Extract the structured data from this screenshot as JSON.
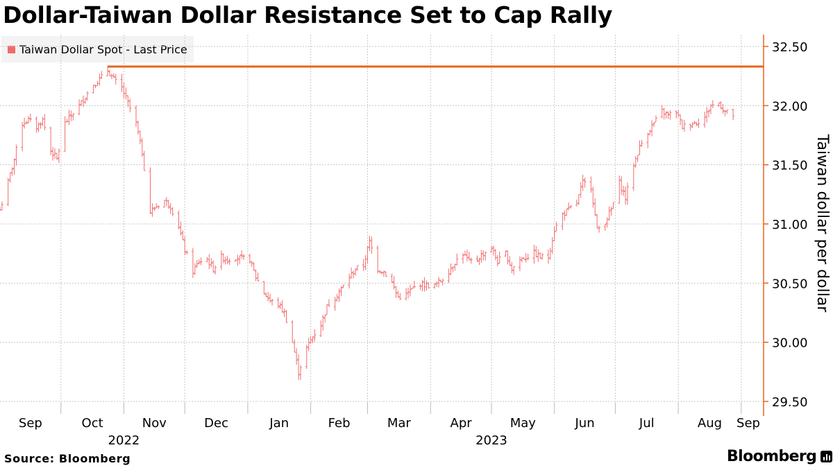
{
  "header": {
    "title": "Dollar-Taiwan Dollar Resistance Set to Cap Rally"
  },
  "legend": {
    "label": "Taiwan Dollar Spot - Last Price",
    "color": "#f26b6b"
  },
  "footer": {
    "source": "Source: Bloomberg",
    "brand": "Bloomberg"
  },
  "colors": {
    "series": "#f26b6b",
    "resistance": "#e8641b",
    "grid": "#c8c8c8",
    "axis": "#e8641b"
  },
  "chart_data": {
    "type": "line",
    "title": "Dollar-Taiwan Dollar Resistance Set to Cap Rally",
    "ylabel": "Taiwan dollar per dollar",
    "xlabel": "",
    "ylim": [
      29.5,
      32.5
    ],
    "yticks": [
      29.5,
      30.0,
      30.5,
      31.0,
      31.5,
      32.0,
      32.5
    ],
    "ytick_labels": [
      "29.50",
      "30.00",
      "30.50",
      "31.00",
      "31.50",
      "32.00",
      "32.50"
    ],
    "y_axis_position": "right",
    "grid": true,
    "legend_position": "top-left",
    "x_domain": [
      "2022-09-01",
      "2023-09-12"
    ],
    "month_ticks": [
      {
        "label": "Sep",
        "date": "2022-09-01"
      },
      {
        "label": "Oct",
        "date": "2022-10-01"
      },
      {
        "label": "Nov",
        "date": "2022-11-01"
      },
      {
        "label": "Dec",
        "date": "2022-12-01"
      },
      {
        "label": "Jan",
        "date": "2023-01-01"
      },
      {
        "label": "Feb",
        "date": "2023-02-01"
      },
      {
        "label": "Mar",
        "date": "2023-03-01"
      },
      {
        "label": "Apr",
        "date": "2023-04-01"
      },
      {
        "label": "May",
        "date": "2023-05-01"
      },
      {
        "label": "Jun",
        "date": "2023-06-01"
      },
      {
        "label": "Jul",
        "date": "2023-07-01"
      },
      {
        "label": "Aug",
        "date": "2023-08-01"
      },
      {
        "label": "Sep",
        "date": "2023-09-01"
      }
    ],
    "year_labels": [
      {
        "label": "2022",
        "date": "2022-11-01"
      },
      {
        "label": "2023",
        "date": "2023-05-01"
      }
    ],
    "resistance": {
      "value": 32.33,
      "from": "2022-10-24",
      "to": "2023-09-12"
    },
    "series": [
      {
        "name": "Taiwan Dollar Spot - Last Price",
        "points": [
          [
            "2022-09-01",
            31.12
          ],
          [
            "2022-09-05",
            31.35
          ],
          [
            "2022-09-08",
            31.55
          ],
          [
            "2022-09-12",
            31.85
          ],
          [
            "2022-09-15",
            31.88
          ],
          [
            "2022-09-19",
            31.82
          ],
          [
            "2022-09-22",
            31.88
          ],
          [
            "2022-09-26",
            31.62
          ],
          [
            "2022-09-29",
            31.55
          ],
          [
            "2022-10-03",
            31.85
          ],
          [
            "2022-10-06",
            31.92
          ],
          [
            "2022-10-10",
            32.0
          ],
          [
            "2022-10-13",
            32.08
          ],
          [
            "2022-10-17",
            32.18
          ],
          [
            "2022-10-20",
            32.22
          ],
          [
            "2022-10-24",
            32.3
          ],
          [
            "2022-10-27",
            32.22
          ],
          [
            "2022-10-31",
            32.15
          ],
          [
            "2022-11-03",
            32.02
          ],
          [
            "2022-11-07",
            31.85
          ],
          [
            "2022-11-10",
            31.6
          ],
          [
            "2022-11-14",
            31.1
          ],
          [
            "2022-11-17",
            31.15
          ],
          [
            "2022-11-21",
            31.2
          ],
          [
            "2022-11-24",
            31.15
          ],
          [
            "2022-11-28",
            30.98
          ],
          [
            "2022-12-01",
            30.78
          ],
          [
            "2022-12-05",
            30.6
          ],
          [
            "2022-12-08",
            30.68
          ],
          [
            "2022-12-12",
            30.7
          ],
          [
            "2022-12-15",
            30.62
          ],
          [
            "2022-12-19",
            30.72
          ],
          [
            "2022-12-22",
            30.7
          ],
          [
            "2022-12-26",
            30.72
          ],
          [
            "2022-12-29",
            30.71
          ],
          [
            "2023-01-02",
            30.7
          ],
          [
            "2023-01-05",
            30.55
          ],
          [
            "2023-01-09",
            30.42
          ],
          [
            "2023-01-12",
            30.35
          ],
          [
            "2023-01-16",
            30.32
          ],
          [
            "2023-01-19",
            30.25
          ],
          [
            "2023-01-23",
            30.0
          ],
          [
            "2023-01-26",
            29.75
          ],
          [
            "2023-01-30",
            29.95
          ],
          [
            "2023-02-02",
            30.05
          ],
          [
            "2023-02-06",
            30.15
          ],
          [
            "2023-02-09",
            30.3
          ],
          [
            "2023-02-13",
            30.38
          ],
          [
            "2023-02-16",
            30.45
          ],
          [
            "2023-02-20",
            30.55
          ],
          [
            "2023-02-23",
            30.62
          ],
          [
            "2023-02-27",
            30.65
          ],
          [
            "2023-03-02",
            30.85
          ],
          [
            "2023-03-06",
            30.62
          ],
          [
            "2023-03-09",
            30.6
          ],
          [
            "2023-03-13",
            30.5
          ],
          [
            "2023-03-16",
            30.38
          ],
          [
            "2023-03-20",
            30.4
          ],
          [
            "2023-03-23",
            30.45
          ],
          [
            "2023-03-27",
            30.5
          ],
          [
            "2023-03-30",
            30.48
          ],
          [
            "2023-04-03",
            30.48
          ],
          [
            "2023-04-06",
            30.52
          ],
          [
            "2023-04-10",
            30.6
          ],
          [
            "2023-04-13",
            30.68
          ],
          [
            "2023-04-17",
            30.75
          ],
          [
            "2023-04-20",
            30.68
          ],
          [
            "2023-04-24",
            30.7
          ],
          [
            "2023-04-27",
            30.75
          ],
          [
            "2023-05-01",
            30.8
          ],
          [
            "2023-05-04",
            30.68
          ],
          [
            "2023-05-08",
            30.75
          ],
          [
            "2023-05-11",
            30.62
          ],
          [
            "2023-05-15",
            30.7
          ],
          [
            "2023-05-18",
            30.72
          ],
          [
            "2023-05-22",
            30.75
          ],
          [
            "2023-05-25",
            30.72
          ],
          [
            "2023-05-29",
            30.72
          ],
          [
            "2023-06-01",
            30.95
          ],
          [
            "2023-06-05",
            31.08
          ],
          [
            "2023-06-08",
            31.12
          ],
          [
            "2023-06-12",
            31.18
          ],
          [
            "2023-06-15",
            31.35
          ],
          [
            "2023-06-19",
            31.32
          ],
          [
            "2023-06-22",
            30.95
          ],
          [
            "2023-06-26",
            31.02
          ],
          [
            "2023-06-29",
            31.12
          ],
          [
            "2023-07-03",
            31.35
          ],
          [
            "2023-07-06",
            31.22
          ],
          [
            "2023-07-10",
            31.5
          ],
          [
            "2023-07-13",
            31.65
          ],
          [
            "2023-07-17",
            31.78
          ],
          [
            "2023-07-20",
            31.85
          ],
          [
            "2023-07-24",
            31.95
          ],
          [
            "2023-07-27",
            31.92
          ],
          [
            "2023-07-31",
            31.95
          ],
          [
            "2023-08-03",
            31.82
          ],
          [
            "2023-08-07",
            31.85
          ],
          [
            "2023-08-10",
            31.86
          ],
          [
            "2023-08-14",
            31.9
          ],
          [
            "2023-08-17",
            32.0
          ],
          [
            "2023-08-21",
            32.02
          ],
          [
            "2023-08-24",
            31.95
          ],
          [
            "2023-08-28",
            31.92
          ]
        ]
      }
    ]
  }
}
